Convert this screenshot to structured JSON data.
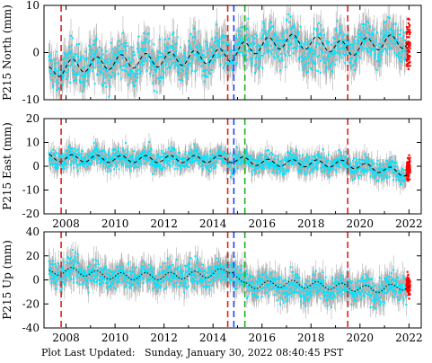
{
  "footer": {
    "label": "Plot Last Updated:",
    "value": "Sunday, January 30, 2022 08:40:45 PST"
  },
  "colors": {
    "error_bars": "#b0b0b0",
    "data_points": "#00e5ff",
    "recent_points": "#ff0000",
    "model_line": "#000000",
    "event_red": "#e02020",
    "event_blue": "#2040ff",
    "event_green": "#20b020"
  },
  "chart_data": [
    {
      "type": "scatter",
      "ylabel": "P215 North (mm)",
      "xlim": [
        2007.1,
        2022.5
      ],
      "ylim": [
        -10,
        10
      ],
      "yticks": [
        -10,
        0,
        10
      ],
      "xticks": [
        2008,
        2010,
        2012,
        2014,
        2016,
        2018,
        2020,
        2022
      ],
      "xtick_labels_shown": false,
      "grid": false,
      "model": {
        "x": [
          2007.3,
          2008.0,
          2010.0,
          2012.0,
          2014.0,
          2014.7,
          2015.3,
          2017.0,
          2019.0,
          2019.5,
          2020.5,
          2022.0
        ],
        "y": [
          -4.5,
          -3.0,
          -2.0,
          -1.5,
          -0.8,
          -0.5,
          0.8,
          2.5,
          1.5,
          0.5,
          2.0,
          2.5
        ],
        "amplitude": 1.5
      },
      "series": [
        {
          "role": "daily-positions",
          "x": [
            2007.3,
            2008.0,
            2010.0,
            2012.0,
            2014.0,
            2014.7,
            2015.3,
            2017.0,
            2018.2,
            2019.0,
            2020.5,
            2021.9
          ],
          "y": [
            -4.5,
            -3.0,
            -2.0,
            -1.5,
            -0.8,
            -0.5,
            1.0,
            2.5,
            0.0,
            1.0,
            2.0,
            2.5
          ],
          "scatter": 2.2,
          "error": 2.5
        },
        {
          "role": "recent-positions",
          "x": [
            2021.9,
            2022.05
          ],
          "y": [
            2.5,
            1.5
          ],
          "scatter": 2.5
        }
      ],
      "events": [
        {
          "x": 2007.8,
          "color": "red"
        },
        {
          "x": 2014.6,
          "color": "red"
        },
        {
          "x": 2014.85,
          "color": "blue"
        },
        {
          "x": 2015.3,
          "color": "green"
        },
        {
          "x": 2019.5,
          "color": "red"
        }
      ]
    },
    {
      "type": "scatter",
      "ylabel": "P215 East (mm)",
      "xlim": [
        2007.1,
        2022.5
      ],
      "ylim": [
        -20,
        20
      ],
      "yticks": [
        -20,
        -10,
        0,
        10,
        20
      ],
      "xticks": [
        2008,
        2010,
        2012,
        2014,
        2016,
        2018,
        2020,
        2022
      ],
      "xtick_labels_shown": true,
      "grid": false,
      "model": {
        "x": [
          2007.3,
          2010.0,
          2014.0,
          2014.7,
          2016.0,
          2019.5,
          2020.0,
          2022.0
        ],
        "y": [
          3.5,
          3.0,
          3.0,
          3.0,
          1.5,
          1.0,
          0.0,
          -3.0
        ],
        "amplitude": 1.5
      },
      "series": [
        {
          "role": "daily-positions",
          "x": [
            2007.3,
            2010.0,
            2014.0,
            2016.0,
            2019.5,
            2020.0,
            2021.9
          ],
          "y": [
            3.5,
            3.0,
            3.0,
            1.5,
            1.0,
            0.0,
            -3.0
          ],
          "scatter": 2.2,
          "error": 3.0
        },
        {
          "role": "recent-positions",
          "x": [
            2021.9,
            2022.05
          ],
          "y": [
            -2.5,
            0.0
          ],
          "scatter": 2.5
        }
      ],
      "events": [
        {
          "x": 2007.8,
          "color": "red"
        },
        {
          "x": 2014.6,
          "color": "red"
        },
        {
          "x": 2014.85,
          "color": "blue"
        },
        {
          "x": 2015.3,
          "color": "green"
        },
        {
          "x": 2019.5,
          "color": "red"
        }
      ]
    },
    {
      "type": "scatter",
      "ylabel": "P215 Up (mm)",
      "xlim": [
        2007.1,
        2022.5
      ],
      "ylim": [
        -40,
        40
      ],
      "yticks": [
        -40,
        -20,
        0,
        20,
        40
      ],
      "xticks": [
        2008,
        2010,
        2012,
        2014,
        2016,
        2018,
        2020,
        2022
      ],
      "xtick_labels_shown": true,
      "grid": false,
      "model": {
        "x": [
          2007.3,
          2008.0,
          2010.0,
          2012.0,
          2014.0,
          2014.8,
          2015.2,
          2017.0,
          2019.5,
          2020.5,
          2022.0
        ],
        "y": [
          5.0,
          8.0,
          3.0,
          3.0,
          5.0,
          9.0,
          -5.0,
          -3.0,
          -6.0,
          -8.0,
          -5.0
        ],
        "amplitude": 3.0
      },
      "series": [
        {
          "role": "daily-positions",
          "x": [
            2007.3,
            2008.0,
            2010.0,
            2012.0,
            2014.0,
            2014.8,
            2015.2,
            2017.0,
            2019.5,
            2020.5,
            2021.9
          ],
          "y": [
            5.0,
            8.0,
            3.0,
            3.0,
            5.0,
            9.0,
            -2.0,
            -5.0,
            -8.0,
            -10.0,
            -5.0
          ],
          "scatter": 5.5,
          "error": 8.0
        },
        {
          "role": "recent-positions",
          "x": [
            2021.9,
            2022.05
          ],
          "y": [
            -2.0,
            -8.0
          ],
          "scatter": 5.0
        }
      ],
      "events": [
        {
          "x": 2007.8,
          "color": "red"
        },
        {
          "x": 2014.6,
          "color": "red"
        },
        {
          "x": 2014.85,
          "color": "blue"
        },
        {
          "x": 2015.3,
          "color": "green"
        },
        {
          "x": 2019.5,
          "color": "red"
        }
      ]
    }
  ]
}
